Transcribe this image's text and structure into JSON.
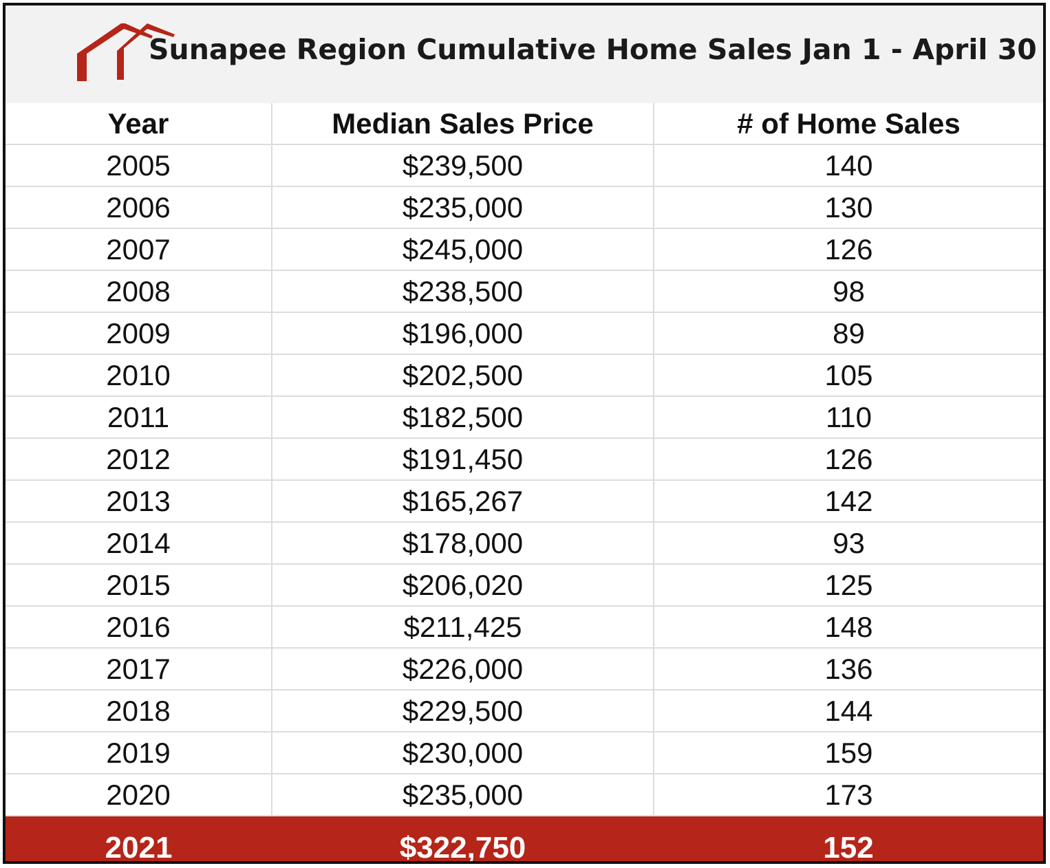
{
  "title": "Sunapee Region Cumulative Home Sales Jan 1 - April 30",
  "logo": {
    "icon": "house-roof-icon",
    "color": "#b52519"
  },
  "colors": {
    "highlight_row": "#b52519",
    "title_band": "#f2f2f2"
  },
  "columns": [
    "Year",
    "Median Sales Price",
    "# of Home Sales"
  ],
  "rows": [
    [
      "2005",
      "$239,500",
      "140"
    ],
    [
      "2006",
      "$235,000",
      "130"
    ],
    [
      "2007",
      "$245,000",
      "126"
    ],
    [
      "2008",
      "$238,500",
      "98"
    ],
    [
      "2009",
      "$196,000",
      "89"
    ],
    [
      "2010",
      "$202,500",
      "105"
    ],
    [
      "2011",
      "$182,500",
      "110"
    ],
    [
      "2012",
      "$191,450",
      "126"
    ],
    [
      "2013",
      "$165,267",
      "142"
    ],
    [
      "2014",
      "$178,000",
      "93"
    ],
    [
      "2015",
      "$206,020",
      "125"
    ],
    [
      "2016",
      "$211,425",
      "148"
    ],
    [
      "2017",
      "$226,000",
      "136"
    ],
    [
      "2018",
      "$229,500",
      "144"
    ],
    [
      "2019",
      "$230,000",
      "159"
    ],
    [
      "2020",
      "$235,000",
      "173"
    ],
    [
      "2021",
      "$322,750",
      "152"
    ]
  ],
  "highlight_row_index": 16,
  "chart_data": {
    "type": "table",
    "title": "Sunapee Region Cumulative Home Sales Jan 1 - April 30",
    "columns": [
      "Year",
      "Median Sales Price",
      "# of Home Sales"
    ],
    "x": [
      2005,
      2006,
      2007,
      2008,
      2009,
      2010,
      2011,
      2012,
      2013,
      2014,
      2015,
      2016,
      2017,
      2018,
      2019,
      2020,
      2021
    ],
    "series": [
      {
        "name": "Median Sales Price",
        "values": [
          239500,
          235000,
          245000,
          238500,
          196000,
          202500,
          182500,
          191450,
          165267,
          178000,
          206020,
          211425,
          226000,
          229500,
          230000,
          235000,
          322750
        ]
      },
      {
        "name": "# of Home Sales",
        "values": [
          140,
          130,
          126,
          98,
          89,
          105,
          110,
          126,
          142,
          93,
          125,
          148,
          136,
          144,
          159,
          173,
          152
        ]
      }
    ]
  }
}
